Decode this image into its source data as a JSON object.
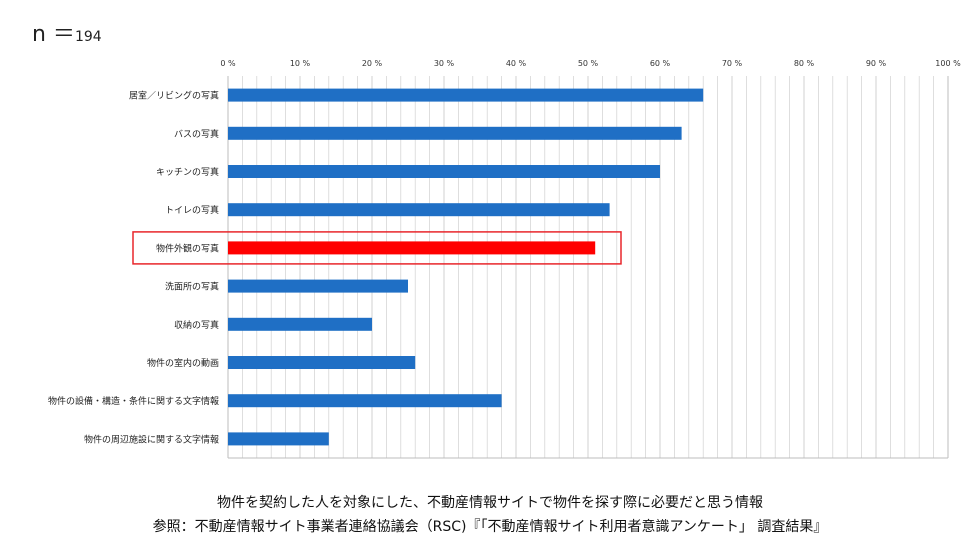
{
  "sample": {
    "prefix": "n ＝",
    "value": "194"
  },
  "chart_data": {
    "type": "bar",
    "orientation": "horizontal",
    "categories": [
      "居室／リビングの写真",
      "バスの写真",
      "キッチンの写真",
      "トイレの写真",
      "物件外観の写真",
      "洗面所の写真",
      "収納の写真",
      "物件の室内の動画",
      "物件の設備・構造・条件に関する文字情報",
      "物件の周辺施設に関する文字情報"
    ],
    "values": [
      66,
      63,
      60,
      53,
      51,
      25,
      20,
      26,
      38,
      14
    ],
    "highlight_index": 4,
    "xlim": [
      0,
      100
    ],
    "xticks": [
      0,
      10,
      20,
      30,
      40,
      50,
      60,
      70,
      80,
      90,
      100
    ],
    "tick_labels": [
      "0 %",
      "10 %",
      "20 %",
      "30 %",
      "40 %",
      "50 %",
      "60 %",
      "70 %",
      "80 %",
      "90 %",
      "100 %"
    ],
    "grid": true,
    "colors": {
      "bar": "#1f6fc5",
      "highlight": "#ff0000",
      "highlight_box": "#e8262b",
      "grid": "#d0d0d0"
    }
  },
  "footer": {
    "line1": "物件を契約した人を対象にした、不動産情報サイトで物件を探す際に必要だと思う情報",
    "line2": "参照：不動産情報サイト事業者連絡協議会（RSC)『「不動産情報サイト利用者意識アンケート」 調査結果』"
  }
}
